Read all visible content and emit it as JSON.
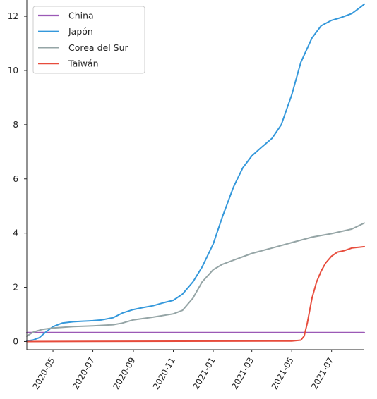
{
  "chart_data": {
    "type": "line",
    "title": "",
    "xlabel": "",
    "ylabel": "",
    "grid": false,
    "legend_position": "top-left",
    "xlim": [
      "2020-03-22",
      "2021-08-20"
    ],
    "ylim": [
      -0.3,
      12.6
    ],
    "x_ticks": [
      "2020-05",
      "2020-07",
      "2020-09",
      "2020-11",
      "2021-01",
      "2021-03",
      "2021-05",
      "2021-07"
    ],
    "y_ticks": [
      0,
      2,
      4,
      6,
      8,
      10,
      12
    ],
    "series": [
      {
        "name": "China",
        "color": "#9b59b6",
        "points": [
          [
            "2020-03-22",
            0.33
          ],
          [
            "2021-08-20",
            0.33
          ]
        ]
      },
      {
        "name": "Japón",
        "color": "#3498db",
        "points": [
          [
            "2020-03-22",
            0.02
          ],
          [
            "2020-04-01",
            0.06
          ],
          [
            "2020-04-10",
            0.14
          ],
          [
            "2020-04-20",
            0.35
          ],
          [
            "2020-05-01",
            0.55
          ],
          [
            "2020-05-15",
            0.68
          ],
          [
            "2020-06-01",
            0.73
          ],
          [
            "2020-06-15",
            0.75
          ],
          [
            "2020-07-01",
            0.77
          ],
          [
            "2020-07-15",
            0.8
          ],
          [
            "2020-08-01",
            0.88
          ],
          [
            "2020-08-15",
            1.05
          ],
          [
            "2020-09-01",
            1.18
          ],
          [
            "2020-09-15",
            1.25
          ],
          [
            "2020-10-01",
            1.32
          ],
          [
            "2020-10-15",
            1.42
          ],
          [
            "2020-11-01",
            1.52
          ],
          [
            "2020-11-15",
            1.75
          ],
          [
            "2020-12-01",
            2.2
          ],
          [
            "2020-12-15",
            2.75
          ],
          [
            "2021-01-01",
            3.6
          ],
          [
            "2021-01-15",
            4.6
          ],
          [
            "2021-02-01",
            5.7
          ],
          [
            "2021-02-15",
            6.4
          ],
          [
            "2021-03-01",
            6.85
          ],
          [
            "2021-03-15",
            7.15
          ],
          [
            "2021-04-01",
            7.5
          ],
          [
            "2021-04-15",
            8.0
          ],
          [
            "2021-05-01",
            9.1
          ],
          [
            "2021-05-15",
            10.3
          ],
          [
            "2021-06-01",
            11.2
          ],
          [
            "2021-06-15",
            11.65
          ],
          [
            "2021-07-01",
            11.85
          ],
          [
            "2021-07-15",
            11.95
          ],
          [
            "2021-08-01",
            12.1
          ],
          [
            "2021-08-15",
            12.35
          ],
          [
            "2021-08-20",
            12.45
          ]
        ]
      },
      {
        "name": "Corea del Sur",
        "color": "#95a5a6",
        "points": [
          [
            "2020-03-22",
            0.2
          ],
          [
            "2020-04-01",
            0.35
          ],
          [
            "2020-04-15",
            0.45
          ],
          [
            "2020-05-01",
            0.5
          ],
          [
            "2020-06-01",
            0.55
          ],
          [
            "2020-07-01",
            0.58
          ],
          [
            "2020-08-01",
            0.62
          ],
          [
            "2020-08-15",
            0.68
          ],
          [
            "2020-09-01",
            0.8
          ],
          [
            "2020-10-01",
            0.9
          ],
          [
            "2020-11-01",
            1.02
          ],
          [
            "2020-11-15",
            1.15
          ],
          [
            "2020-12-01",
            1.6
          ],
          [
            "2020-12-15",
            2.2
          ],
          [
            "2021-01-01",
            2.65
          ],
          [
            "2021-01-15",
            2.85
          ],
          [
            "2021-02-01",
            3.0
          ],
          [
            "2021-03-01",
            3.25
          ],
          [
            "2021-04-01",
            3.45
          ],
          [
            "2021-05-01",
            3.65
          ],
          [
            "2021-06-01",
            3.85
          ],
          [
            "2021-07-01",
            3.98
          ],
          [
            "2021-08-01",
            4.15
          ],
          [
            "2021-08-20",
            4.37
          ]
        ]
      },
      {
        "name": "Taiwán",
        "color": "#e74c3c",
        "points": [
          [
            "2020-03-22",
            0.0
          ],
          [
            "2021-05-01",
            0.02
          ],
          [
            "2021-05-15",
            0.05
          ],
          [
            "2021-05-20",
            0.2
          ],
          [
            "2021-05-25",
            0.7
          ],
          [
            "2021-06-01",
            1.6
          ],
          [
            "2021-06-08",
            2.2
          ],
          [
            "2021-06-15",
            2.6
          ],
          [
            "2021-06-22",
            2.9
          ],
          [
            "2021-07-01",
            3.15
          ],
          [
            "2021-07-10",
            3.3
          ],
          [
            "2021-07-20",
            3.35
          ],
          [
            "2021-08-01",
            3.45
          ],
          [
            "2021-08-20",
            3.5
          ]
        ]
      }
    ]
  }
}
